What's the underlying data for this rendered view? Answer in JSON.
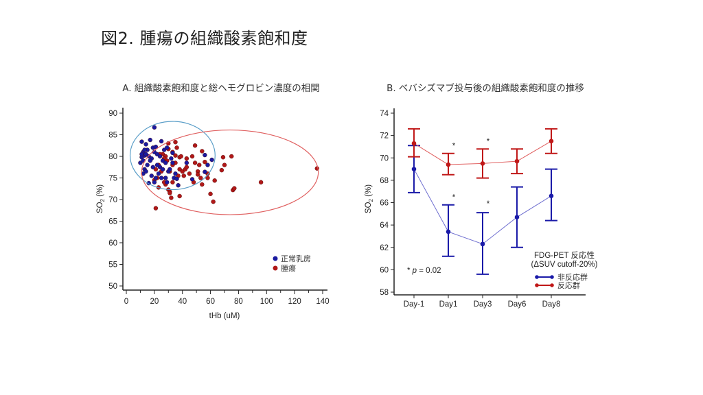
{
  "slide": {
    "title": "図2. 腫瘍の組織酸素飽和度"
  },
  "chart_data": [
    {
      "type": "scatter",
      "title": "A. 組織酸素飽和度と総ヘモグロビン濃度の相関",
      "xlabel": "tHb (uM)",
      "ylabel_main": "SO",
      "ylabel_sub": "2",
      "ylabel_unit": " (%)",
      "xlim": [
        0,
        140
      ],
      "ylim": [
        50,
        90
      ],
      "xticks": [
        0,
        20,
        40,
        60,
        80,
        100,
        120,
        140
      ],
      "yticks": [
        50,
        55,
        60,
        65,
        70,
        75,
        80,
        85,
        90
      ],
      "grid": false,
      "legend_position": "bottom-right",
      "series": [
        {
          "name": "正常乳房",
          "color": "#1a1aa0",
          "ellipse": {
            "cx": 33,
            "cy": 80.2,
            "rx": 30.3,
            "ry": 7.9,
            "color": "#5a9ec8"
          },
          "points": [
            [
              20,
              86.7
            ],
            [
              11,
              83.4
            ],
            [
              17,
              83.8
            ],
            [
              25,
              83.5
            ],
            [
              14,
              82.8
            ],
            [
              19,
              82
            ],
            [
              21,
              82.2
            ],
            [
              15,
              81.5
            ],
            [
              12,
              81
            ],
            [
              13,
              80.2
            ],
            [
              11,
              79.8
            ],
            [
              10,
              78.5
            ],
            [
              12,
              79
            ],
            [
              14,
              80.5
            ],
            [
              16,
              80
            ],
            [
              18,
              79.5
            ],
            [
              20,
              81
            ],
            [
              22,
              80.5
            ],
            [
              24,
              80
            ],
            [
              26,
              79
            ],
            [
              13,
              77
            ],
            [
              12,
              76
            ],
            [
              14,
              76.5
            ],
            [
              16,
              73.8
            ],
            [
              19,
              77.5
            ],
            [
              18,
              75.5
            ],
            [
              20,
              74
            ],
            [
              21,
              75
            ],
            [
              23,
              76
            ],
            [
              25,
              75
            ],
            [
              24,
              77.5
            ],
            [
              26,
              77
            ],
            [
              28,
              75
            ],
            [
              29,
              74
            ],
            [
              30,
              76.5
            ],
            [
              31,
              77
            ],
            [
              33,
              78.5
            ],
            [
              32,
              79.5
            ],
            [
              34,
              75
            ],
            [
              36,
              74.8
            ],
            [
              37,
              73.3
            ],
            [
              43,
              78.5
            ],
            [
              47,
              74.7
            ],
            [
              56,
              80.3
            ],
            [
              58,
              78
            ],
            [
              61,
              79.2
            ],
            [
              56,
              76.4
            ],
            [
              27,
              81.5
            ],
            [
              29,
              82
            ],
            [
              15,
              78
            ],
            [
              17,
              79
            ],
            [
              22,
              78
            ],
            [
              28,
              78.5
            ],
            [
              33,
              80.8
            ],
            [
              35,
              76
            ],
            [
              11,
              80.5
            ],
            [
              13,
              81.5
            ]
          ]
        },
        {
          "name": "腫瘍",
          "color": "#b01818",
          "ellipse": {
            "cx": 73.9,
            "cy": 76.3,
            "rx": 63,
            "ry": 9.8,
            "color": "#e06060"
          },
          "points": [
            [
              21,
              68
            ],
            [
              30,
              83
            ],
            [
              35,
              83.3
            ],
            [
              36,
              82
            ],
            [
              49,
              82.5
            ],
            [
              54,
              81.2
            ],
            [
              30,
              81.7
            ],
            [
              33,
              81
            ],
            [
              26,
              80.5
            ],
            [
              28,
              80
            ],
            [
              38,
              79.8
            ],
            [
              39,
              80
            ],
            [
              43,
              79.5
            ],
            [
              47,
              80
            ],
            [
              56,
              78.7
            ],
            [
              52,
              78
            ],
            [
              49,
              78.5
            ],
            [
              35,
              78.5
            ],
            [
              33,
              78
            ],
            [
              29,
              79
            ],
            [
              23,
              78
            ],
            [
              21,
              77
            ],
            [
              25,
              76.5
            ],
            [
              31,
              76.5
            ],
            [
              38,
              77
            ],
            [
              40,
              76.5
            ],
            [
              42,
              77
            ],
            [
              43,
              77.5
            ],
            [
              37,
              75.5
            ],
            [
              41,
              75.5
            ],
            [
              45,
              76
            ],
            [
              51,
              76.5
            ],
            [
              51,
              75.8
            ],
            [
              53,
              75
            ],
            [
              58,
              76
            ],
            [
              58,
              75
            ],
            [
              48,
              74
            ],
            [
              54,
              73.5
            ],
            [
              63,
              74.4
            ],
            [
              33,
              74
            ],
            [
              28,
              73.5
            ],
            [
              27,
              74
            ],
            [
              22,
              75
            ],
            [
              20,
              74.5
            ],
            [
              23,
              72.8
            ],
            [
              30,
              72.3
            ],
            [
              31,
              71.8
            ],
            [
              31,
              71.5
            ],
            [
              32,
              70.4
            ],
            [
              38,
              70.8
            ],
            [
              60,
              71.3
            ],
            [
              62,
              69.5
            ],
            [
              69,
              79.8
            ],
            [
              70,
              78
            ],
            [
              68,
              76.8
            ],
            [
              75,
              80
            ],
            [
              76,
              72.2
            ],
            [
              77,
              72.6
            ],
            [
              96,
              74
            ],
            [
              136,
              77.2
            ],
            [
              24,
              80.5
            ],
            [
              27,
              79.5
            ],
            [
              35,
              80.2
            ]
          ]
        }
      ]
    },
    {
      "type": "line",
      "title": "B. ベバシズマブ投与後の組織酸素飽和度の推移",
      "xlabel": "",
      "ylabel_main": "SO",
      "ylabel_sub": "2",
      "ylabel_unit": " (%)",
      "categories": [
        "Day-1",
        "Day1",
        "Day3",
        "Day6",
        "Day8"
      ],
      "ylim": [
        58,
        74
      ],
      "yticks": [
        58,
        60,
        62,
        64,
        66,
        68,
        70,
        72,
        74
      ],
      "grid": false,
      "legend_position": "bottom-right",
      "legend_title": [
        "FDG-PET 反応性",
        "(ΔSUV cutoff-20%)"
      ],
      "annotation_text": "* p = 0.02",
      "annotation_parts": [
        "* ",
        "p",
        " = 0.02"
      ],
      "series": [
        {
          "name": "非反応群",
          "color": "#1a1aa8",
          "line_color": "#7070d0",
          "values": [
            69.0,
            63.4,
            62.3,
            64.7,
            66.6
          ],
          "error_low": [
            66.9,
            61.2,
            59.6,
            62.0,
            64.4
          ],
          "error_high": [
            71.1,
            65.8,
            65.1,
            67.4,
            69.0
          ],
          "significance": [
            {
              "category": "Day1",
              "y": 66.5,
              "label": "*"
            },
            {
              "category": "Day3",
              "y": 65.9,
              "label": "*"
            }
          ]
        },
        {
          "name": "反応群",
          "color": "#c01818",
          "line_color": "#e06060",
          "values": [
            71.3,
            69.4,
            69.5,
            69.7,
            71.5
          ],
          "error_low": [
            70.1,
            68.5,
            68.2,
            68.6,
            70.4
          ],
          "error_high": [
            72.6,
            70.4,
            70.8,
            70.8,
            72.6
          ],
          "significance": [
            {
              "category": "Day1",
              "y": 71.1,
              "label": "*"
            },
            {
              "category": "Day3",
              "y": 71.5,
              "label": "*"
            }
          ]
        }
      ]
    }
  ]
}
